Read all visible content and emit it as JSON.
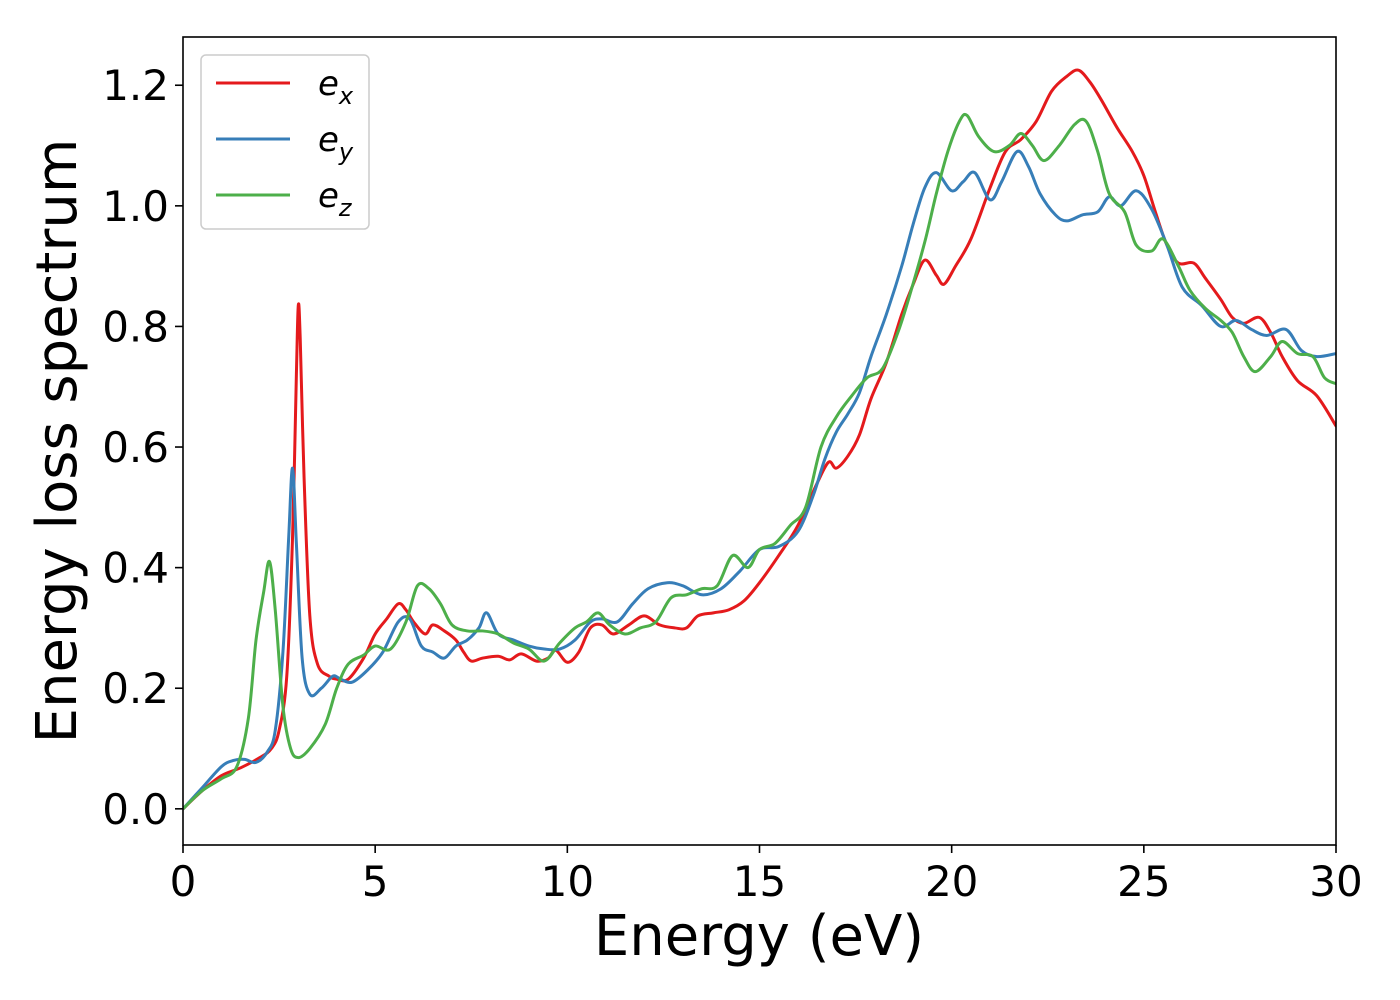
{
  "chart_data": {
    "type": "line",
    "title": "",
    "xlabel": "Energy (eV)",
    "ylabel": "Energy loss spectrum",
    "xlim": [
      0,
      30
    ],
    "ylim": [
      -0.06,
      1.28
    ],
    "xticks": [
      0,
      5,
      10,
      15,
      20,
      25,
      30
    ],
    "xtick_labels": [
      "0",
      "5",
      "10",
      "15",
      "20",
      "25",
      "30"
    ],
    "yticks": [
      0.0,
      0.2,
      0.4,
      0.6,
      0.8,
      1.0,
      1.2
    ],
    "ytick_labels": [
      "0.0",
      "0.2",
      "0.4",
      "0.6",
      "0.8",
      "1.0",
      "1.2"
    ],
    "grid": false,
    "legend": "top-left",
    "series": [
      {
        "name": "e_x",
        "legend_base": "e",
        "legend_sub": "x",
        "color": "#e41a1c",
        "points": [
          [
            0,
            0
          ],
          [
            0.5,
            0.03
          ],
          [
            1,
            0.055
          ],
          [
            1.5,
            0.068
          ],
          [
            2,
            0.085
          ],
          [
            2.3,
            0.1
          ],
          [
            2.5,
            0.13
          ],
          [
            2.7,
            0.22
          ],
          [
            2.85,
            0.45
          ],
          [
            2.95,
            0.72
          ],
          [
            3.0,
            0.835
          ],
          [
            3.05,
            0.78
          ],
          [
            3.15,
            0.55
          ],
          [
            3.3,
            0.32
          ],
          [
            3.5,
            0.24
          ],
          [
            3.8,
            0.22
          ],
          [
            4,
            0.215
          ],
          [
            4.3,
            0.215
          ],
          [
            4.7,
            0.25
          ],
          [
            5,
            0.29
          ],
          [
            5.3,
            0.315
          ],
          [
            5.6,
            0.34
          ],
          [
            5.8,
            0.33
          ],
          [
            6,
            0.31
          ],
          [
            6.3,
            0.29
          ],
          [
            6.5,
            0.305
          ],
          [
            6.8,
            0.295
          ],
          [
            7.1,
            0.28
          ],
          [
            7.3,
            0.26
          ],
          [
            7.5,
            0.245
          ],
          [
            7.8,
            0.25
          ],
          [
            8.2,
            0.253
          ],
          [
            8.5,
            0.247
          ],
          [
            8.8,
            0.257
          ],
          [
            9.2,
            0.245
          ],
          [
            9.5,
            0.25
          ],
          [
            9.7,
            0.263
          ],
          [
            10,
            0.243
          ],
          [
            10.3,
            0.26
          ],
          [
            10.6,
            0.3
          ],
          [
            10.9,
            0.305
          ],
          [
            11.2,
            0.29
          ],
          [
            11.6,
            0.305
          ],
          [
            12,
            0.32
          ],
          [
            12.4,
            0.305
          ],
          [
            12.8,
            0.3
          ],
          [
            13.1,
            0.3
          ],
          [
            13.4,
            0.32
          ],
          [
            13.8,
            0.325
          ],
          [
            14.2,
            0.33
          ],
          [
            14.6,
            0.345
          ],
          [
            15,
            0.375
          ],
          [
            15.5,
            0.42
          ],
          [
            16,
            0.47
          ],
          [
            16.5,
            0.54
          ],
          [
            16.8,
            0.575
          ],
          [
            17,
            0.565
          ],
          [
            17.3,
            0.585
          ],
          [
            17.6,
            0.62
          ],
          [
            17.9,
            0.68
          ],
          [
            18.3,
            0.74
          ],
          [
            18.7,
            0.82
          ],
          [
            19,
            0.87
          ],
          [
            19.3,
            0.91
          ],
          [
            19.6,
            0.885
          ],
          [
            19.8,
            0.87
          ],
          [
            20.1,
            0.9
          ],
          [
            20.5,
            0.945
          ],
          [
            21,
            1.03
          ],
          [
            21.4,
            1.09
          ],
          [
            21.8,
            1.11
          ],
          [
            22.2,
            1.14
          ],
          [
            22.6,
            1.19
          ],
          [
            23,
            1.215
          ],
          [
            23.3,
            1.225
          ],
          [
            23.6,
            1.205
          ],
          [
            23.9,
            1.175
          ],
          [
            24.3,
            1.13
          ],
          [
            24.7,
            1.09
          ],
          [
            25,
            1.05
          ],
          [
            25.3,
            0.99
          ],
          [
            25.6,
            0.935
          ],
          [
            25.9,
            0.905
          ],
          [
            26.3,
            0.905
          ],
          [
            26.6,
            0.88
          ],
          [
            27,
            0.845
          ],
          [
            27.3,
            0.815
          ],
          [
            27.6,
            0.805
          ],
          [
            28,
            0.815
          ],
          [
            28.3,
            0.79
          ],
          [
            28.6,
            0.75
          ],
          [
            29,
            0.71
          ],
          [
            29.5,
            0.685
          ],
          [
            30,
            0.635
          ]
        ]
      },
      {
        "name": "e_y",
        "legend_base": "e",
        "legend_sub": "y",
        "color": "#377eb8",
        "points": [
          [
            0,
            0
          ],
          [
            0.5,
            0.035
          ],
          [
            1,
            0.07
          ],
          [
            1.3,
            0.08
          ],
          [
            1.6,
            0.082
          ],
          [
            1.9,
            0.077
          ],
          [
            2.2,
            0.095
          ],
          [
            2.4,
            0.13
          ],
          [
            2.6,
            0.26
          ],
          [
            2.75,
            0.45
          ],
          [
            2.85,
            0.565
          ],
          [
            2.95,
            0.44
          ],
          [
            3.1,
            0.25
          ],
          [
            3.3,
            0.19
          ],
          [
            3.6,
            0.2
          ],
          [
            3.9,
            0.22
          ],
          [
            4.1,
            0.215
          ],
          [
            4.4,
            0.21
          ],
          [
            4.8,
            0.23
          ],
          [
            5.2,
            0.26
          ],
          [
            5.6,
            0.31
          ],
          [
            5.9,
            0.315
          ],
          [
            6.2,
            0.27
          ],
          [
            6.5,
            0.26
          ],
          [
            6.8,
            0.25
          ],
          [
            7.1,
            0.27
          ],
          [
            7.4,
            0.28
          ],
          [
            7.7,
            0.3
          ],
          [
            7.9,
            0.325
          ],
          [
            8.2,
            0.29
          ],
          [
            8.6,
            0.28
          ],
          [
            9,
            0.27
          ],
          [
            9.4,
            0.265
          ],
          [
            9.8,
            0.265
          ],
          [
            10.2,
            0.28
          ],
          [
            10.6,
            0.31
          ],
          [
            10.9,
            0.315
          ],
          [
            11.3,
            0.31
          ],
          [
            11.7,
            0.34
          ],
          [
            12.1,
            0.365
          ],
          [
            12.6,
            0.375
          ],
          [
            13,
            0.37
          ],
          [
            13.5,
            0.355
          ],
          [
            14,
            0.365
          ],
          [
            14.5,
            0.395
          ],
          [
            15,
            0.43
          ],
          [
            15.5,
            0.435
          ],
          [
            16,
            0.46
          ],
          [
            16.4,
            0.52
          ],
          [
            16.7,
            0.58
          ],
          [
            17,
            0.625
          ],
          [
            17.3,
            0.655
          ],
          [
            17.6,
            0.69
          ],
          [
            17.9,
            0.75
          ],
          [
            18.3,
            0.82
          ],
          [
            18.7,
            0.9
          ],
          [
            19,
            0.97
          ],
          [
            19.3,
            1.03
          ],
          [
            19.6,
            1.055
          ],
          [
            20,
            1.025
          ],
          [
            20.3,
            1.04
          ],
          [
            20.6,
            1.055
          ],
          [
            21,
            1.01
          ],
          [
            21.3,
            1.04
          ],
          [
            21.7,
            1.09
          ],
          [
            22,
            1.065
          ],
          [
            22.3,
            1.02
          ],
          [
            22.7,
            0.985
          ],
          [
            23,
            0.975
          ],
          [
            23.4,
            0.985
          ],
          [
            23.8,
            0.99
          ],
          [
            24.1,
            1.015
          ],
          [
            24.4,
            1.0
          ],
          [
            24.8,
            1.025
          ],
          [
            25.2,
            0.995
          ],
          [
            25.6,
            0.935
          ],
          [
            26,
            0.865
          ],
          [
            26.5,
            0.835
          ],
          [
            27,
            0.8
          ],
          [
            27.4,
            0.81
          ],
          [
            27.8,
            0.795
          ],
          [
            28.2,
            0.785
          ],
          [
            28.7,
            0.795
          ],
          [
            29.1,
            0.76
          ],
          [
            29.5,
            0.75
          ],
          [
            30,
            0.755
          ]
        ]
      },
      {
        "name": "e_z",
        "legend_base": "e",
        "legend_sub": "z",
        "color": "#4daf4a",
        "points": [
          [
            0,
            0
          ],
          [
            0.5,
            0.03
          ],
          [
            1,
            0.05
          ],
          [
            1.4,
            0.07
          ],
          [
            1.7,
            0.15
          ],
          [
            1.9,
            0.28
          ],
          [
            2.1,
            0.36
          ],
          [
            2.25,
            0.41
          ],
          [
            2.4,
            0.33
          ],
          [
            2.6,
            0.17
          ],
          [
            2.8,
            0.1
          ],
          [
            3.0,
            0.085
          ],
          [
            3.3,
            0.1
          ],
          [
            3.7,
            0.14
          ],
          [
            4,
            0.2
          ],
          [
            4.3,
            0.24
          ],
          [
            4.7,
            0.255
          ],
          [
            5,
            0.27
          ],
          [
            5.4,
            0.265
          ],
          [
            5.8,
            0.31
          ],
          [
            6.1,
            0.37
          ],
          [
            6.4,
            0.365
          ],
          [
            6.7,
            0.34
          ],
          [
            7,
            0.305
          ],
          [
            7.4,
            0.295
          ],
          [
            7.8,
            0.295
          ],
          [
            8.2,
            0.29
          ],
          [
            8.6,
            0.275
          ],
          [
            9,
            0.265
          ],
          [
            9.4,
            0.245
          ],
          [
            9.8,
            0.275
          ],
          [
            10.2,
            0.3
          ],
          [
            10.5,
            0.31
          ],
          [
            10.8,
            0.325
          ],
          [
            11.1,
            0.305
          ],
          [
            11.5,
            0.29
          ],
          [
            11.9,
            0.3
          ],
          [
            12.3,
            0.31
          ],
          [
            12.7,
            0.35
          ],
          [
            13.1,
            0.355
          ],
          [
            13.5,
            0.365
          ],
          [
            13.9,
            0.37
          ],
          [
            14.3,
            0.42
          ],
          [
            14.7,
            0.4
          ],
          [
            15,
            0.43
          ],
          [
            15.4,
            0.44
          ],
          [
            15.8,
            0.47
          ],
          [
            16.2,
            0.5
          ],
          [
            16.6,
            0.6
          ],
          [
            17,
            0.65
          ],
          [
            17.4,
            0.685
          ],
          [
            17.8,
            0.715
          ],
          [
            18.2,
            0.73
          ],
          [
            18.6,
            0.79
          ],
          [
            18.9,
            0.85
          ],
          [
            19.3,
            0.94
          ],
          [
            19.6,
            1.02
          ],
          [
            19.9,
            1.09
          ],
          [
            20.2,
            1.14
          ],
          [
            20.4,
            1.15
          ],
          [
            20.7,
            1.115
          ],
          [
            21.1,
            1.09
          ],
          [
            21.5,
            1.1
          ],
          [
            21.8,
            1.12
          ],
          [
            22.1,
            1.1
          ],
          [
            22.4,
            1.075
          ],
          [
            22.8,
            1.1
          ],
          [
            23.2,
            1.135
          ],
          [
            23.5,
            1.14
          ],
          [
            23.8,
            1.09
          ],
          [
            24.1,
            1.02
          ],
          [
            24.5,
            0.99
          ],
          [
            24.8,
            0.935
          ],
          [
            25.2,
            0.925
          ],
          [
            25.5,
            0.945
          ],
          [
            25.9,
            0.9
          ],
          [
            26.2,
            0.86
          ],
          [
            26.6,
            0.83
          ],
          [
            27,
            0.81
          ],
          [
            27.3,
            0.79
          ],
          [
            27.6,
            0.75
          ],
          [
            27.9,
            0.725
          ],
          [
            28.3,
            0.75
          ],
          [
            28.6,
            0.775
          ],
          [
            29,
            0.755
          ],
          [
            29.4,
            0.75
          ],
          [
            29.7,
            0.715
          ],
          [
            30,
            0.705
          ]
        ]
      }
    ]
  }
}
